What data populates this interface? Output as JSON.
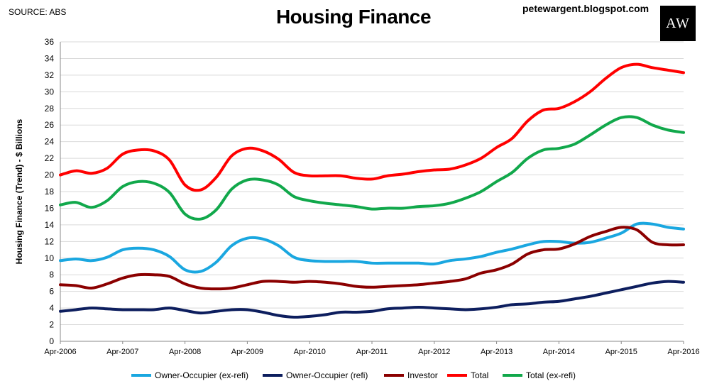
{
  "header": {
    "source": "SOURCE: ABS",
    "title": "Housing Finance",
    "blog": "petewargent.blogspot.com",
    "logo_text": "AW"
  },
  "chart_data": {
    "type": "line",
    "title": "Housing Finance",
    "ylabel": "Housing Finance (Trend) - $ Billions",
    "xlabel": "",
    "ylim": [
      0,
      36
    ],
    "yticks": [
      0,
      2,
      4,
      6,
      8,
      10,
      12,
      14,
      16,
      18,
      20,
      22,
      24,
      26,
      28,
      30,
      32,
      34,
      36
    ],
    "xlim": [
      2006.25,
      2016.25
    ],
    "xticks": [
      {
        "x": 2006.25,
        "label": "Apr-2006"
      },
      {
        "x": 2007.25,
        "label": "Apr-2007"
      },
      {
        "x": 2008.25,
        "label": "Apr-2008"
      },
      {
        "x": 2009.25,
        "label": "Apr-2009"
      },
      {
        "x": 2010.25,
        "label": "Apr-2010"
      },
      {
        "x": 2011.25,
        "label": "Apr-2011"
      },
      {
        "x": 2012.25,
        "label": "Apr-2012"
      },
      {
        "x": 2013.25,
        "label": "Apr-2013"
      },
      {
        "x": 2014.25,
        "label": "Apr-2014"
      },
      {
        "x": 2015.25,
        "label": "Apr-2015"
      },
      {
        "x": 2016.25,
        "label": "Apr-2016"
      }
    ],
    "grid": "horizontal",
    "legend": "bottom",
    "series": [
      {
        "name": "Owner-Occupier (ex-refi)",
        "color": "#1aa7e0",
        "points": [
          [
            2006.25,
            9.7
          ],
          [
            2006.5,
            9.9
          ],
          [
            2006.75,
            9.7
          ],
          [
            2007.0,
            10.1
          ],
          [
            2007.25,
            11.0
          ],
          [
            2007.5,
            11.2
          ],
          [
            2007.75,
            11.0
          ],
          [
            2008.0,
            10.2
          ],
          [
            2008.25,
            8.6
          ],
          [
            2008.5,
            8.4
          ],
          [
            2008.75,
            9.5
          ],
          [
            2009.0,
            11.5
          ],
          [
            2009.25,
            12.4
          ],
          [
            2009.5,
            12.3
          ],
          [
            2009.75,
            11.5
          ],
          [
            2010.0,
            10.1
          ],
          [
            2010.25,
            9.7
          ],
          [
            2010.5,
            9.6
          ],
          [
            2010.75,
            9.6
          ],
          [
            2011.0,
            9.6
          ],
          [
            2011.25,
            9.4
          ],
          [
            2011.5,
            9.4
          ],
          [
            2011.75,
            9.4
          ],
          [
            2012.0,
            9.4
          ],
          [
            2012.25,
            9.3
          ],
          [
            2012.5,
            9.7
          ],
          [
            2012.75,
            9.9
          ],
          [
            2013.0,
            10.2
          ],
          [
            2013.25,
            10.7
          ],
          [
            2013.5,
            11.1
          ],
          [
            2013.75,
            11.6
          ],
          [
            2014.0,
            12.0
          ],
          [
            2014.25,
            12.0
          ],
          [
            2014.5,
            11.8
          ],
          [
            2014.75,
            11.9
          ],
          [
            2015.0,
            12.4
          ],
          [
            2015.25,
            13.0
          ],
          [
            2015.5,
            14.1
          ],
          [
            2015.75,
            14.1
          ],
          [
            2016.0,
            13.7
          ],
          [
            2016.25,
            13.5
          ]
        ]
      },
      {
        "name": "Owner-Occupier (refi)",
        "color": "#0d1e5e",
        "points": [
          [
            2006.25,
            3.6
          ],
          [
            2006.5,
            3.8
          ],
          [
            2006.75,
            4.0
          ],
          [
            2007.0,
            3.9
          ],
          [
            2007.25,
            3.8
          ],
          [
            2007.5,
            3.8
          ],
          [
            2007.75,
            3.8
          ],
          [
            2008.0,
            4.0
          ],
          [
            2008.25,
            3.7
          ],
          [
            2008.5,
            3.4
          ],
          [
            2008.75,
            3.6
          ],
          [
            2009.0,
            3.8
          ],
          [
            2009.25,
            3.8
          ],
          [
            2009.5,
            3.5
          ],
          [
            2009.75,
            3.1
          ],
          [
            2010.0,
            2.9
          ],
          [
            2010.25,
            3.0
          ],
          [
            2010.5,
            3.2
          ],
          [
            2010.75,
            3.5
          ],
          [
            2011.0,
            3.5
          ],
          [
            2011.25,
            3.6
          ],
          [
            2011.5,
            3.9
          ],
          [
            2011.75,
            4.0
          ],
          [
            2012.0,
            4.1
          ],
          [
            2012.25,
            4.0
          ],
          [
            2012.5,
            3.9
          ],
          [
            2012.75,
            3.8
          ],
          [
            2013.0,
            3.9
          ],
          [
            2013.25,
            4.1
          ],
          [
            2013.5,
            4.4
          ],
          [
            2013.75,
            4.5
          ],
          [
            2014.0,
            4.7
          ],
          [
            2014.25,
            4.8
          ],
          [
            2014.5,
            5.1
          ],
          [
            2014.75,
            5.4
          ],
          [
            2015.0,
            5.8
          ],
          [
            2015.25,
            6.2
          ],
          [
            2015.5,
            6.6
          ],
          [
            2015.75,
            7.0
          ],
          [
            2016.0,
            7.2
          ],
          [
            2016.25,
            7.1
          ]
        ]
      },
      {
        "name": "Investor",
        "color": "#8b0000",
        "points": [
          [
            2006.25,
            6.8
          ],
          [
            2006.5,
            6.7
          ],
          [
            2006.75,
            6.4
          ],
          [
            2007.0,
            6.9
          ],
          [
            2007.25,
            7.6
          ],
          [
            2007.5,
            8.0
          ],
          [
            2007.75,
            8.0
          ],
          [
            2008.0,
            7.8
          ],
          [
            2008.25,
            6.9
          ],
          [
            2008.5,
            6.4
          ],
          [
            2008.75,
            6.3
          ],
          [
            2009.0,
            6.4
          ],
          [
            2009.25,
            6.8
          ],
          [
            2009.5,
            7.2
          ],
          [
            2009.75,
            7.2
          ],
          [
            2010.0,
            7.1
          ],
          [
            2010.25,
            7.2
          ],
          [
            2010.5,
            7.1
          ],
          [
            2010.75,
            6.9
          ],
          [
            2011.0,
            6.6
          ],
          [
            2011.25,
            6.5
          ],
          [
            2011.5,
            6.6
          ],
          [
            2011.75,
            6.7
          ],
          [
            2012.0,
            6.8
          ],
          [
            2012.25,
            7.0
          ],
          [
            2012.5,
            7.2
          ],
          [
            2012.75,
            7.5
          ],
          [
            2013.0,
            8.2
          ],
          [
            2013.25,
            8.6
          ],
          [
            2013.5,
            9.3
          ],
          [
            2013.75,
            10.5
          ],
          [
            2014.0,
            11.0
          ],
          [
            2014.25,
            11.1
          ],
          [
            2014.5,
            11.7
          ],
          [
            2014.75,
            12.6
          ],
          [
            2015.0,
            13.2
          ],
          [
            2015.25,
            13.7
          ],
          [
            2015.5,
            13.4
          ],
          [
            2015.75,
            11.9
          ],
          [
            2016.0,
            11.6
          ],
          [
            2016.25,
            11.6
          ]
        ]
      },
      {
        "name": "Total",
        "color": "#ff0000",
        "points": [
          [
            2006.25,
            20.0
          ],
          [
            2006.5,
            20.5
          ],
          [
            2006.75,
            20.2
          ],
          [
            2007.0,
            20.8
          ],
          [
            2007.25,
            22.5
          ],
          [
            2007.5,
            23.0
          ],
          [
            2007.75,
            22.9
          ],
          [
            2008.0,
            21.8
          ],
          [
            2008.25,
            18.8
          ],
          [
            2008.5,
            18.2
          ],
          [
            2008.75,
            19.7
          ],
          [
            2009.0,
            22.3
          ],
          [
            2009.25,
            23.2
          ],
          [
            2009.5,
            22.9
          ],
          [
            2009.75,
            21.9
          ],
          [
            2010.0,
            20.3
          ],
          [
            2010.25,
            19.9
          ],
          [
            2010.5,
            19.9
          ],
          [
            2010.75,
            19.9
          ],
          [
            2011.0,
            19.6
          ],
          [
            2011.25,
            19.5
          ],
          [
            2011.5,
            19.9
          ],
          [
            2011.75,
            20.1
          ],
          [
            2012.0,
            20.4
          ],
          [
            2012.25,
            20.6
          ],
          [
            2012.5,
            20.7
          ],
          [
            2012.75,
            21.2
          ],
          [
            2013.0,
            22.0
          ],
          [
            2013.25,
            23.3
          ],
          [
            2013.5,
            24.4
          ],
          [
            2013.75,
            26.5
          ],
          [
            2014.0,
            27.8
          ],
          [
            2014.25,
            28.0
          ],
          [
            2014.5,
            28.8
          ],
          [
            2014.75,
            30.0
          ],
          [
            2015.0,
            31.6
          ],
          [
            2015.25,
            32.9
          ],
          [
            2015.5,
            33.3
          ],
          [
            2015.75,
            32.9
          ],
          [
            2016.0,
            32.6
          ],
          [
            2016.25,
            32.3
          ]
        ]
      },
      {
        "name": "Total (ex-refi)",
        "color": "#11a84b",
        "points": [
          [
            2006.25,
            16.4
          ],
          [
            2006.5,
            16.7
          ],
          [
            2006.75,
            16.1
          ],
          [
            2007.0,
            16.9
          ],
          [
            2007.25,
            18.6
          ],
          [
            2007.5,
            19.2
          ],
          [
            2007.75,
            19.0
          ],
          [
            2008.0,
            17.9
          ],
          [
            2008.25,
            15.3
          ],
          [
            2008.5,
            14.7
          ],
          [
            2008.75,
            15.8
          ],
          [
            2009.0,
            18.3
          ],
          [
            2009.25,
            19.4
          ],
          [
            2009.5,
            19.4
          ],
          [
            2009.75,
            18.8
          ],
          [
            2010.0,
            17.4
          ],
          [
            2010.25,
            16.9
          ],
          [
            2010.5,
            16.6
          ],
          [
            2010.75,
            16.4
          ],
          [
            2011.0,
            16.2
          ],
          [
            2011.25,
            15.9
          ],
          [
            2011.5,
            16.0
          ],
          [
            2011.75,
            16.0
          ],
          [
            2012.0,
            16.2
          ],
          [
            2012.25,
            16.3
          ],
          [
            2012.5,
            16.6
          ],
          [
            2012.75,
            17.2
          ],
          [
            2013.0,
            18.0
          ],
          [
            2013.25,
            19.2
          ],
          [
            2013.5,
            20.3
          ],
          [
            2013.75,
            22.0
          ],
          [
            2014.0,
            23.0
          ],
          [
            2014.25,
            23.2
          ],
          [
            2014.5,
            23.7
          ],
          [
            2014.75,
            24.8
          ],
          [
            2015.0,
            26.0
          ],
          [
            2015.25,
            26.9
          ],
          [
            2015.5,
            26.9
          ],
          [
            2015.75,
            26.0
          ],
          [
            2016.0,
            25.4
          ],
          [
            2016.25,
            25.1
          ]
        ]
      }
    ]
  }
}
